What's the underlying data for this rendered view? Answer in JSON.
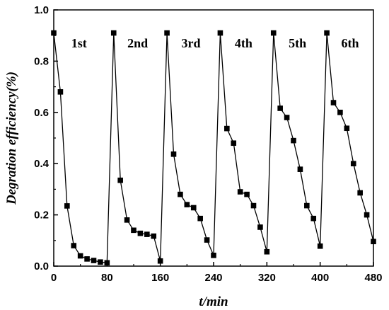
{
  "chart_data": {
    "type": "line",
    "xlabel": "t/min",
    "ylabel": "Degration efficiency(%)",
    "xlim": [
      0,
      480
    ],
    "ylim": [
      0,
      1.0
    ],
    "x_ticks": [
      "0",
      "80",
      "160",
      "240",
      "320",
      "400",
      "480"
    ],
    "y_ticks": [
      "0.0",
      "0.2",
      "0.4",
      "0.6",
      "0.8",
      "1.0"
    ],
    "grid": false,
    "line_color": "#000000",
    "marker": "square",
    "annotations": [
      {
        "text": "1st",
        "x": 38,
        "y": 0.87
      },
      {
        "text": "2nd",
        "x": 126,
        "y": 0.87
      },
      {
        "text": "3rd",
        "x": 206,
        "y": 0.87
      },
      {
        "text": "4th",
        "x": 285,
        "y": 0.87
      },
      {
        "text": "5th",
        "x": 366,
        "y": 0.87
      },
      {
        "text": "6th",
        "x": 445,
        "y": 0.87
      }
    ],
    "series": [
      {
        "x": [
          0,
          10,
          20,
          30,
          40,
          50,
          60,
          70,
          80,
          90,
          100,
          110,
          120,
          130,
          140,
          150,
          160,
          170,
          180,
          190,
          200,
          210,
          220,
          230,
          240,
          250,
          260,
          270,
          280,
          290,
          300,
          310,
          320,
          330,
          340,
          350,
          360,
          370,
          380,
          390,
          400,
          410,
          420,
          430,
          440,
          450,
          460,
          470,
          480
        ],
        "values": [
          0.91,
          0.68,
          0.235,
          0.08,
          0.04,
          0.028,
          0.022,
          0.016,
          0.013,
          0.91,
          0.335,
          0.18,
          0.14,
          0.128,
          0.124,
          0.117,
          0.02,
          0.91,
          0.437,
          0.28,
          0.24,
          0.228,
          0.186,
          0.102,
          0.042,
          0.91,
          0.537,
          0.48,
          0.29,
          0.28,
          0.236,
          0.152,
          0.056,
          0.91,
          0.616,
          0.58,
          0.49,
          0.378,
          0.236,
          0.186,
          0.078,
          0.91,
          0.638,
          0.6,
          0.538,
          0.4,
          0.286,
          0.2,
          0.096
        ]
      }
    ]
  }
}
